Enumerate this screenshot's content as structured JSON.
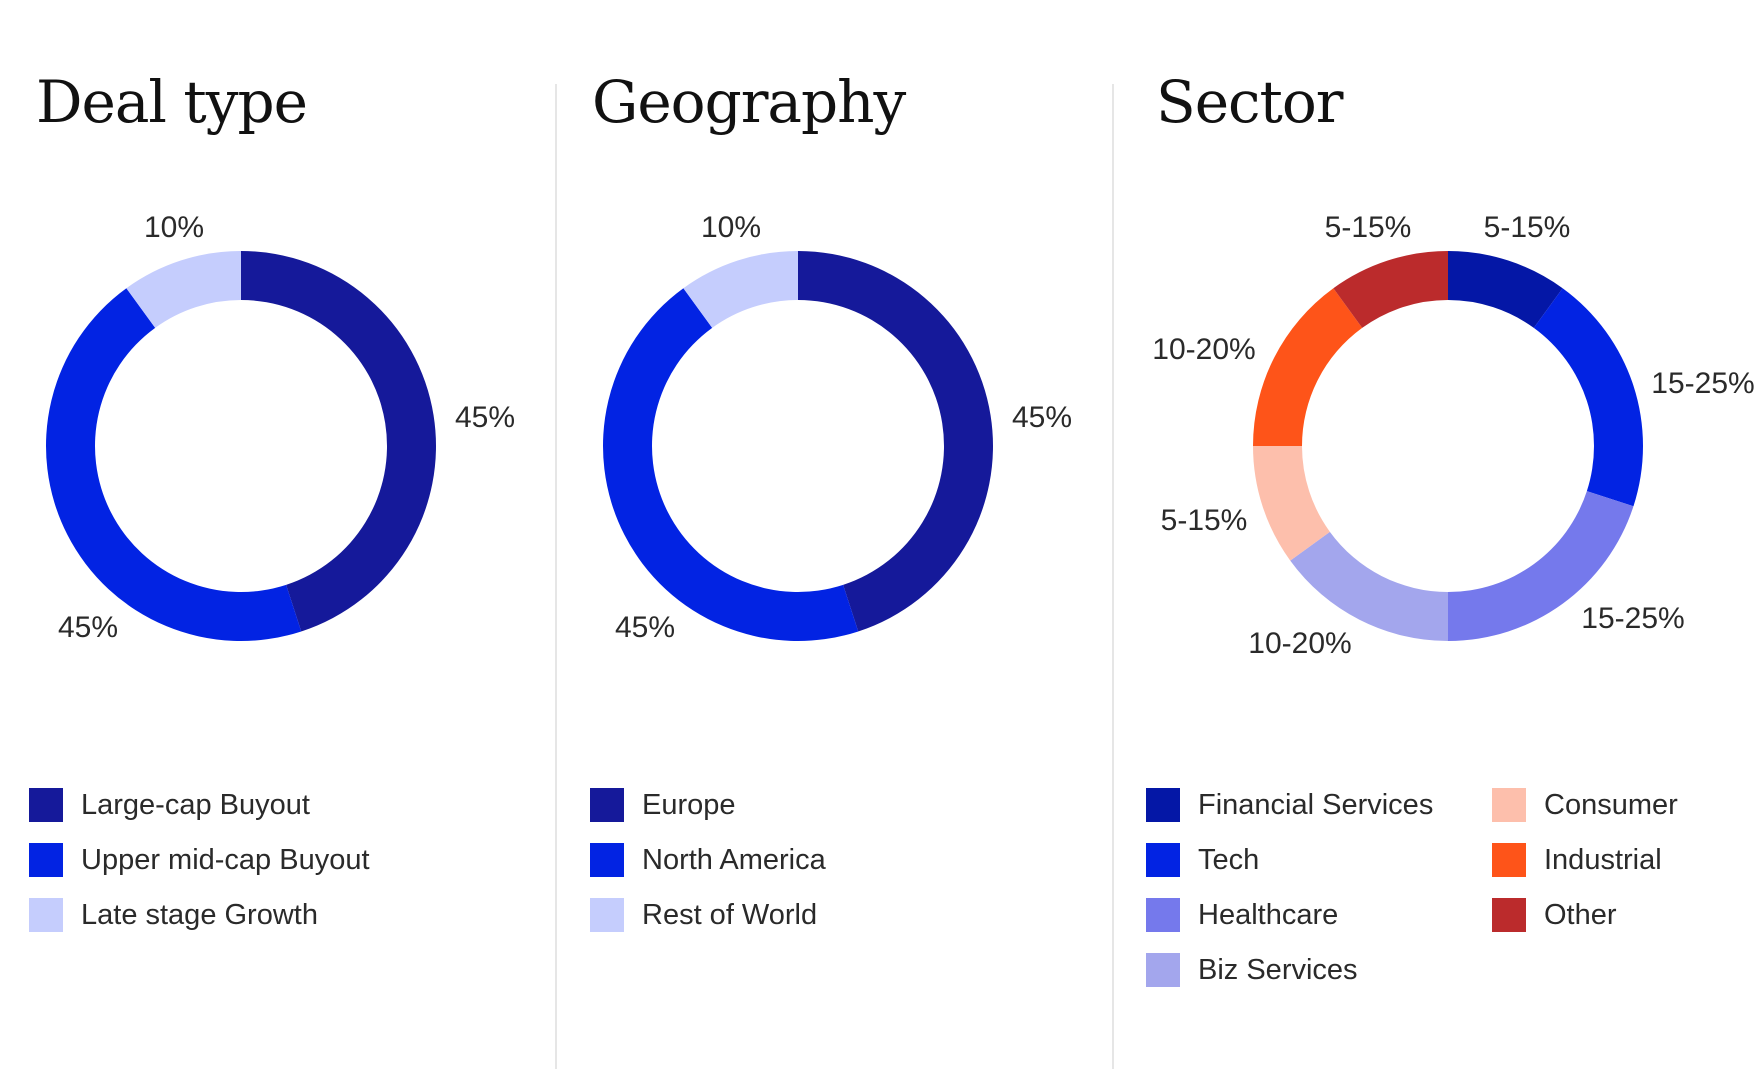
{
  "chart_data": [
    {
      "type": "pie",
      "title": "Deal type",
      "categories": [
        "Large-cap Buyout",
        "Upper mid-cap Buyout",
        "Late stage Growth"
      ],
      "values": [
        45,
        45,
        10
      ],
      "data_labels": [
        "45%",
        "45%",
        "10%"
      ],
      "colors": [
        "#15199a",
        "#0223e3",
        "#c5cdfd"
      ],
      "legend": "bottom"
    },
    {
      "type": "pie",
      "title": "Geography",
      "categories": [
        "Europe",
        "North America",
        "Rest of World"
      ],
      "values": [
        45,
        45,
        10
      ],
      "data_labels": [
        "45%",
        "45%",
        "10%"
      ],
      "colors": [
        "#15199a",
        "#0223e3",
        "#c5cdfd"
      ],
      "legend": "bottom"
    },
    {
      "type": "pie",
      "title": "Sector",
      "categories": [
        "Financial Services",
        "Tech",
        "Healthcare",
        "Biz Services",
        "Consumer",
        "Industrial",
        "Other"
      ],
      "values": [
        10,
        20,
        20,
        15,
        10,
        15,
        10
      ],
      "data_labels": [
        "5-15%",
        "15-25%",
        "15-25%",
        "10-20%",
        "5-15%",
        "10-20%",
        "5-15%"
      ],
      "colors": [
        "#0417a6",
        "#0223e3",
        "#7579ec",
        "#a3a6ed",
        "#fdbfac",
        "#fe5419",
        "#bb2b2c"
      ],
      "legend": "bottom"
    }
  ]
}
